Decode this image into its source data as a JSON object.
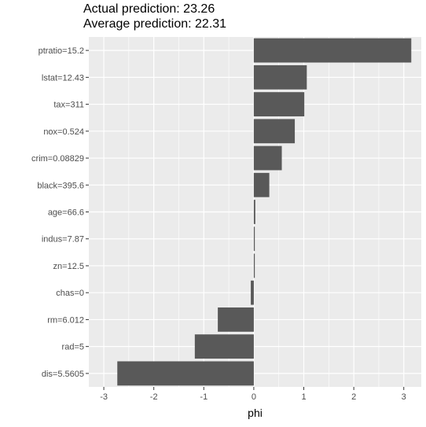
{
  "header": {
    "actual_prediction": "Actual prediction: 23.26",
    "average_prediction": "Average prediction: 22.31"
  },
  "chart_data": {
    "type": "bar",
    "orientation": "horizontal",
    "categories": [
      "ptratio=15.2",
      "lstat=12.43",
      "tax=311",
      "nox=0.524",
      "crim=0.08829",
      "black=395.6",
      "age=66.6",
      "indus=7.87",
      "zn=12.5",
      "chas=0",
      "rm=6.012",
      "rad=5",
      "dis=5.5605"
    ],
    "values": [
      3.15,
      1.06,
      1.01,
      0.82,
      0.56,
      0.31,
      0.03,
      0.02,
      0.02,
      -0.06,
      -0.72,
      -1.18,
      -2.73
    ],
    "xlabel": "phi",
    "ylabel": "",
    "xlim": [
      -3.3,
      3.35
    ],
    "xticks": [
      -3,
      -2,
      -1,
      0,
      1,
      2,
      3
    ],
    "grid": true,
    "colors": {
      "bar": "#595959",
      "panel": "#ebebeb",
      "grid": "#ffffff"
    }
  }
}
